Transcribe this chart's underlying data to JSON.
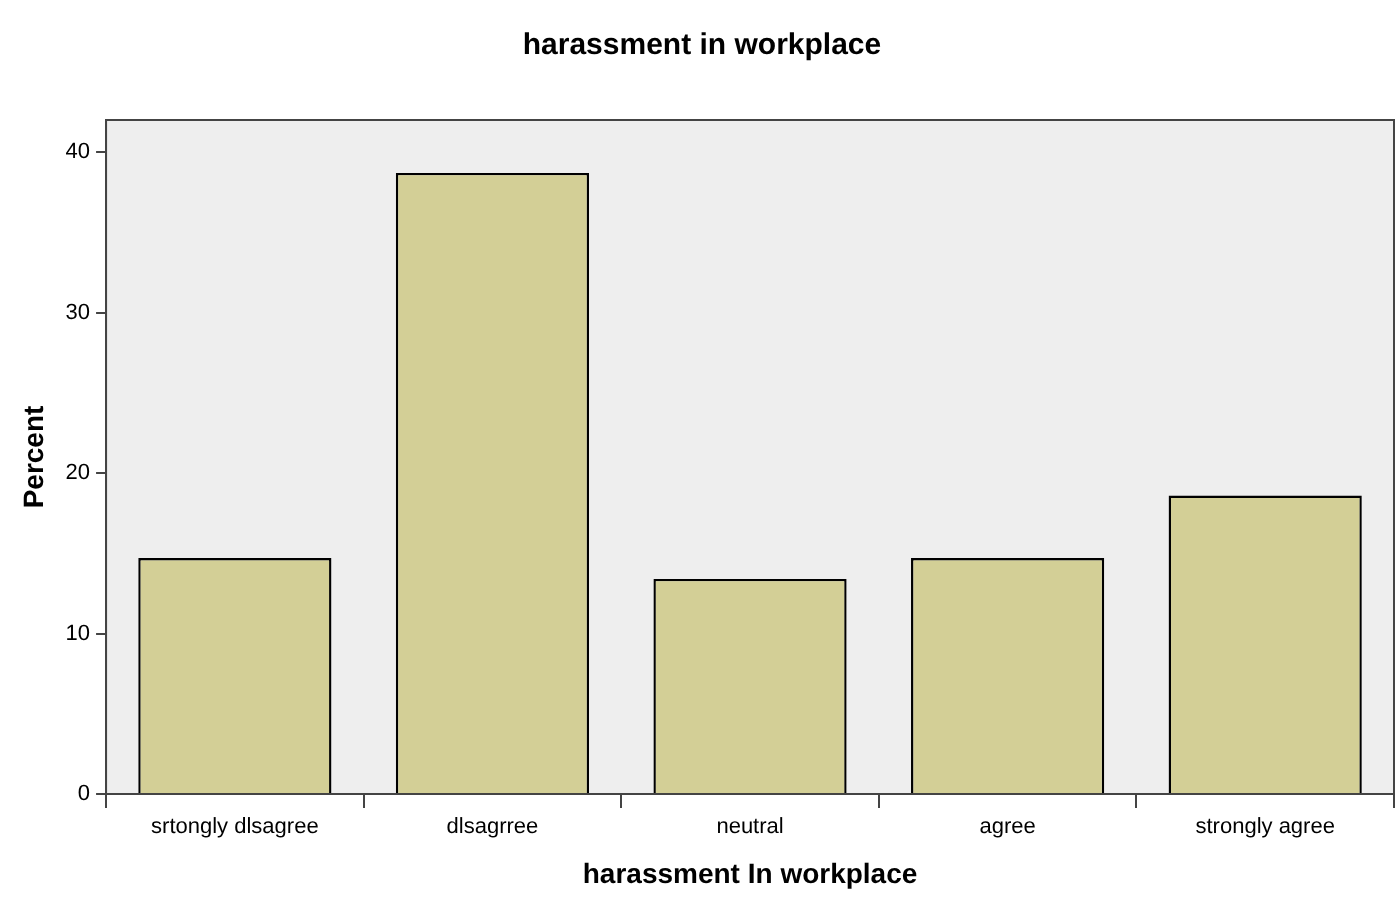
{
  "chart_data": {
    "type": "bar",
    "title": "harassment in workplace",
    "xlabel": "harassment In workplace",
    "ylabel": "Percent",
    "categories": [
      "srtongly dlsagree",
      "dlsagrree",
      "neutral",
      "agree",
      "strongly agree"
    ],
    "values": [
      14.7,
      38.7,
      13.4,
      14.7,
      18.6
    ],
    "color": "#d3cf96",
    "ylim": [
      0,
      42
    ],
    "yticks": [
      0,
      10,
      20,
      30,
      40
    ],
    "grid": false,
    "legend": false
  }
}
